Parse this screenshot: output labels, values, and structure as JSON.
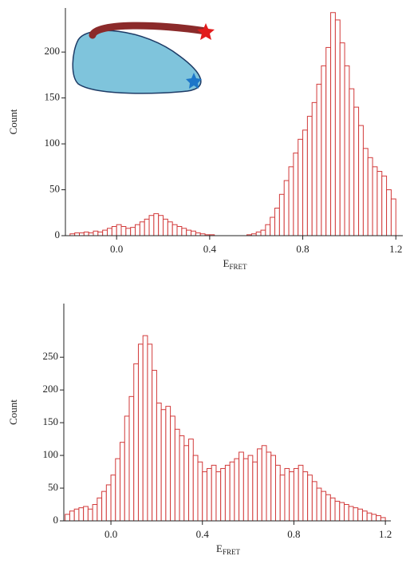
{
  "chart_data": [
    {
      "type": "histogram",
      "ylabel": "Count",
      "xlabel": "E",
      "xlabel_subscript": "FRET",
      "color": "#d23a3a",
      "bins": [
        -0.2,
        -0.18,
        -0.16,
        -0.14,
        -0.12,
        -0.1,
        -0.08,
        -0.06,
        -0.04,
        -0.02,
        0,
        0.02,
        0.04,
        0.06,
        0.08,
        0.1,
        0.12,
        0.14,
        0.16,
        0.18,
        0.2,
        0.22,
        0.24,
        0.26,
        0.28,
        0.3,
        0.32,
        0.34,
        0.36,
        0.38,
        0.4,
        0.42,
        0.44,
        0.46,
        0.48,
        0.5,
        0.52,
        0.54,
        0.56,
        0.58,
        0.6,
        0.62,
        0.64,
        0.66,
        0.68,
        0.7,
        0.72,
        0.74,
        0.76,
        0.78,
        0.8,
        0.82,
        0.84,
        0.86,
        0.88,
        0.9,
        0.92,
        0.94,
        0.96,
        0.98,
        1,
        1.02,
        1.04,
        1.06,
        1.08,
        1.1,
        1.12,
        1.14,
        1.16,
        1.18,
        1.2
      ],
      "values": [
        2,
        3,
        3,
        4,
        3,
        5,
        4,
        6,
        8,
        10,
        12,
        10,
        8,
        9,
        12,
        15,
        18,
        22,
        24,
        22,
        18,
        15,
        12,
        10,
        8,
        6,
        5,
        3,
        2,
        1,
        1,
        0,
        0,
        0,
        0,
        0,
        0,
        0,
        1,
        2,
        4,
        6,
        12,
        20,
        30,
        45,
        60,
        75,
        90,
        105,
        115,
        130,
        145,
        165,
        185,
        205,
        243,
        235,
        210,
        185,
        160,
        140,
        120,
        95,
        85,
        75,
        70,
        65,
        50,
        40
      ],
      "xlim": [
        -0.22,
        1.23
      ],
      "xticks": [
        {
          "value": 0,
          "label": "0.0"
        },
        0.4,
        0.8,
        1.2
      ],
      "ylim": [
        0,
        248
      ],
      "yticks": [
        0,
        50,
        100,
        150,
        200
      ]
    },
    {
      "type": "histogram",
      "ylabel": "Count",
      "xlabel": "E",
      "xlabel_subscript": "FRET",
      "color": "#d23a3a",
      "bins": [
        -0.2,
        -0.18,
        -0.16,
        -0.14,
        -0.12,
        -0.1,
        -0.08,
        -0.06,
        -0.04,
        -0.02,
        0,
        0.02,
        0.04,
        0.06,
        0.08,
        0.1,
        0.12,
        0.14,
        0.16,
        0.18,
        0.2,
        0.22,
        0.24,
        0.26,
        0.28,
        0.3,
        0.32,
        0.34,
        0.36,
        0.38,
        0.4,
        0.42,
        0.44,
        0.46,
        0.48,
        0.5,
        0.52,
        0.54,
        0.56,
        0.58,
        0.6,
        0.62,
        0.64,
        0.66,
        0.68,
        0.7,
        0.72,
        0.74,
        0.76,
        0.78,
        0.8,
        0.82,
        0.84,
        0.86,
        0.88,
        0.9,
        0.92,
        0.94,
        0.96,
        0.98,
        1,
        1.02,
        1.04,
        1.06,
        1.08,
        1.1,
        1.12,
        1.14,
        1.16,
        1.18,
        1.2
      ],
      "values": [
        10,
        15,
        18,
        20,
        22,
        18,
        25,
        35,
        45,
        55,
        70,
        95,
        120,
        160,
        190,
        240,
        270,
        283,
        270,
        230,
        180,
        170,
        175,
        160,
        140,
        130,
        115,
        125,
        100,
        90,
        75,
        80,
        85,
        75,
        80,
        85,
        90,
        95,
        105,
        95,
        100,
        90,
        110,
        115,
        105,
        100,
        85,
        70,
        80,
        75,
        80,
        85,
        75,
        70,
        60,
        50,
        45,
        40,
        35,
        30,
        28,
        25,
        22,
        20,
        18,
        15,
        12,
        10,
        8,
        5
      ],
      "xlim": [
        -0.206,
        1.224
      ],
      "xticks": [
        {
          "value": 0,
          "label": "0.0"
        },
        0.4,
        0.8,
        1.2
      ],
      "ylim": [
        0,
        332
      ],
      "yticks": [
        0,
        50,
        100,
        150,
        200,
        250
      ]
    }
  ]
}
